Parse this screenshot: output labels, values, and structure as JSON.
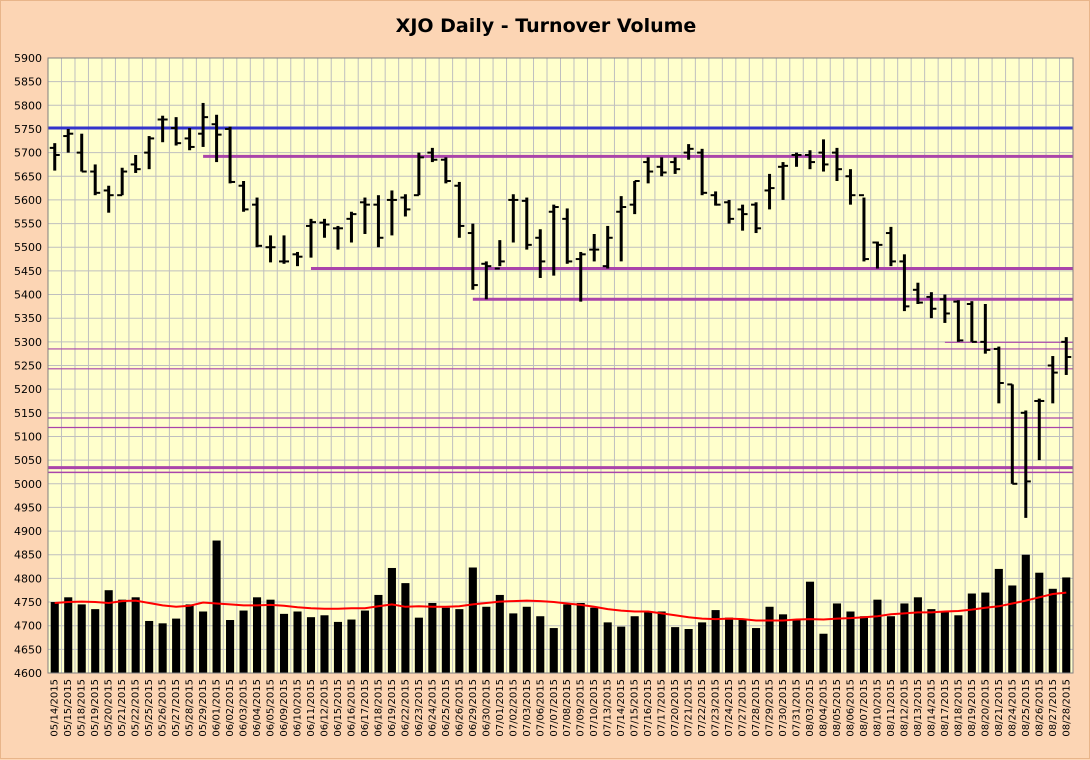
{
  "chart_data": {
    "type": "ohlc_with_volume_bars",
    "title": "XJO Daily - Turnover Volume",
    "ylim": [
      4600,
      5900
    ],
    "y_ticks": [
      5900,
      5850,
      5800,
      5750,
      5700,
      5650,
      5600,
      5550,
      5500,
      5450,
      5400,
      5350,
      5300,
      5250,
      5200,
      5150,
      5100,
      5050,
      5000,
      4950,
      4900,
      4850,
      4800,
      4750,
      4700,
      4650,
      4600
    ],
    "grid": true,
    "background": "#ffffcc",
    "frame_background": "#fcd5b4",
    "x_labels": [
      "05/14/2015",
      "05/15/2015",
      "05/18/2015",
      "05/19/2015",
      "05/20/2015",
      "05/21/2015",
      "05/22/2015",
      "05/25/2015",
      "05/26/2015",
      "05/27/2015",
      "05/28/2015",
      "05/29/2015",
      "06/01/2015",
      "06/02/2015",
      "06/03/2015",
      "06/04/2015",
      "06/05/2015",
      "06/09/2015",
      "06/10/2015",
      "06/11/2015",
      "06/12/2015",
      "06/15/2015",
      "06/16/2015",
      "06/17/2015",
      "06/18/2015",
      "06/19/2015",
      "06/22/2015",
      "06/23/2015",
      "06/24/2015",
      "06/25/2015",
      "06/26/2015",
      "06/29/2015",
      "06/30/2015",
      "07/01/2015",
      "07/02/2015",
      "07/03/2015",
      "07/06/2015",
      "07/07/2015",
      "07/08/2015",
      "07/09/2015",
      "07/10/2015",
      "07/13/2015",
      "07/14/2015",
      "07/15/2015",
      "07/16/2015",
      "07/17/2015",
      "07/20/2015",
      "07/21/2015",
      "07/22/2015",
      "07/23/2015",
      "07/24/2015",
      "07/27/2015",
      "07/28/2015",
      "07/29/2015",
      "07/30/2015",
      "07/31/2015",
      "08/03/2015",
      "08/04/2015",
      "08/05/2015",
      "08/06/2015",
      "08/07/2015",
      "08/10/2015",
      "08/11/2015",
      "08/12/2015",
      "08/13/2015",
      "08/14/2015",
      "08/17/2015",
      "08/18/2015",
      "08/19/2015",
      "08/20/2015",
      "08/21/2015",
      "08/24/2015",
      "08/25/2015",
      "08/26/2015",
      "08/27/2015",
      "08/28/2015"
    ],
    "price_series": {
      "high": [
        5720,
        5750,
        5740,
        5675,
        5630,
        5668,
        5695,
        5735,
        5778,
        5775,
        5752,
        5805,
        5780,
        5755,
        5640,
        5605,
        5525,
        5525,
        5490,
        5560,
        5560,
        5545,
        5575,
        5605,
        5610,
        5620,
        5612,
        5700,
        5710,
        5690,
        5638,
        5550,
        5470,
        5515,
        5612,
        5605,
        5538,
        5590,
        5582,
        5490,
        5528,
        5545,
        5608,
        5640,
        5690,
        5690,
        5690,
        5718,
        5708,
        5618,
        5600,
        5590,
        5595,
        5655,
        5680,
        5700,
        5705,
        5728,
        5710,
        5665,
        5605,
        5512,
        5543,
        5485,
        5425,
        5405,
        5400,
        5388,
        5386,
        5380,
        5290,
        5210,
        5155,
        5180,
        5270,
        5310
      ],
      "low": [
        5662,
        5700,
        5660,
        5610,
        5573,
        5610,
        5657,
        5665,
        5722,
        5715,
        5705,
        5712,
        5680,
        5635,
        5575,
        5500,
        5468,
        5465,
        5460,
        5478,
        5520,
        5495,
        5510,
        5528,
        5500,
        5525,
        5565,
        5610,
        5680,
        5635,
        5520,
        5410,
        5390,
        5460,
        5510,
        5495,
        5435,
        5440,
        5465,
        5385,
        5470,
        5455,
        5470,
        5570,
        5635,
        5650,
        5655,
        5685,
        5610,
        5588,
        5550,
        5535,
        5530,
        5580,
        5600,
        5670,
        5665,
        5660,
        5640,
        5590,
        5470,
        5455,
        5460,
        5365,
        5380,
        5350,
        5340,
        5300,
        5300,
        5275,
        5170,
        5000,
        4928,
        5050,
        5170,
        5230
      ],
      "open": [
        5710,
        5735,
        5700,
        5660,
        5620,
        5610,
        5675,
        5700,
        5770,
        5752,
        5730,
        5740,
        5760,
        5750,
        5630,
        5590,
        5500,
        5470,
        5485,
        5545,
        5552,
        5540,
        5560,
        5595,
        5590,
        5600,
        5605,
        5610,
        5700,
        5685,
        5630,
        5530,
        5465,
        5455,
        5600,
        5598,
        5520,
        5575,
        5560,
        5475,
        5495,
        5460,
        5575,
        5590,
        5680,
        5670,
        5680,
        5700,
        5700,
        5610,
        5595,
        5580,
        5590,
        5620,
        5670,
        5695,
        5695,
        5700,
        5700,
        5650,
        5610,
        5510,
        5530,
        5470,
        5410,
        5395,
        5390,
        5385,
        5380,
        5300,
        5285,
        5210,
        5150,
        5175,
        5250,
        5300
      ],
      "close": [
        5695,
        5740,
        5660,
        5615,
        5610,
        5660,
        5665,
        5730,
        5770,
        5720,
        5712,
        5775,
        5738,
        5638,
        5580,
        5503,
        5500,
        5470,
        5480,
        5553,
        5548,
        5540,
        5570,
        5590,
        5520,
        5600,
        5580,
        5690,
        5685,
        5640,
        5545,
        5420,
        5460,
        5470,
        5600,
        5505,
        5470,
        5585,
        5470,
        5485,
        5495,
        5520,
        5585,
        5640,
        5660,
        5658,
        5665,
        5708,
        5615,
        5590,
        5560,
        5570,
        5540,
        5625,
        5672,
        5695,
        5680,
        5675,
        5665,
        5610,
        5475,
        5505,
        5470,
        5375,
        5383,
        5370,
        5360,
        5303,
        5300,
        5283,
        5213,
        5000,
        5005,
        5175,
        5235,
        5268
      ]
    },
    "volume_series": {
      "values": [
        4750,
        4760,
        4745,
        4735,
        4775,
        4755,
        4760,
        4710,
        4705,
        4715,
        4745,
        4730,
        4880,
        4712,
        4732,
        4760,
        4755,
        4725,
        4730,
        4718,
        4722,
        4708,
        4713,
        4732,
        4765,
        4822,
        4790,
        4717,
        4748,
        4738,
        4735,
        4823,
        4740,
        4765,
        4726,
        4740,
        4720,
        4695,
        4745,
        4748,
        4738,
        4707,
        4698,
        4720,
        4730,
        4730,
        4697,
        4693,
        4707,
        4733,
        4717,
        4715,
        4695,
        4740,
        4724,
        4712,
        4793,
        4683,
        4747,
        4730,
        4720,
        4755,
        4720,
        4747,
        4760,
        4735,
        4730,
        4722,
        4768,
        4770,
        4820,
        4785,
        4850,
        4812,
        4778,
        4802
      ]
    },
    "moving_average": {
      "color": "#ff0000",
      "values": [
        4748,
        4750,
        4751,
        4750,
        4748,
        4752,
        4753,
        4748,
        4743,
        4740,
        4742,
        4749,
        4747,
        4745,
        4743,
        4743,
        4744,
        4742,
        4739,
        4737,
        4736,
        4736,
        4737,
        4737,
        4741,
        4745,
        4740,
        4741,
        4740,
        4740,
        4741,
        4745,
        4748,
        4751,
        4752,
        4753,
        4752,
        4750,
        4747,
        4744,
        4740,
        4735,
        4732,
        4730,
        4730,
        4726,
        4722,
        4718,
        4715,
        4714,
        4715,
        4714,
        4711,
        4711,
        4711,
        4713,
        4714,
        4713,
        4715,
        4716,
        4718,
        4720,
        4724,
        4726,
        4728,
        4728,
        4730,
        4731,
        4734,
        4738,
        4741,
        4747,
        4753,
        4760,
        4767,
        4770
      ]
    },
    "horizontal_lines": [
      {
        "y": 5752,
        "color": "#3333cc",
        "width": 3,
        "from_index": -1
      },
      {
        "y": 5692,
        "color": "#aa44aa",
        "width": 3,
        "from_index": 11
      },
      {
        "y": 5455,
        "color": "#aa44aa",
        "width": 3,
        "from_index": 19
      },
      {
        "y": 5390,
        "color": "#aa44aa",
        "width": 3,
        "from_index": 31
      },
      {
        "y": 5299,
        "color": "#aa44aa",
        "width": 1.2,
        "from_index": 66
      },
      {
        "y": 5285,
        "color": "#aa44aa",
        "width": 1.2,
        "from_index": -1
      },
      {
        "y": 5243,
        "color": "#aa44aa",
        "width": 1.2,
        "from_index": -1
      },
      {
        "y": 5139,
        "color": "#aa44aa",
        "width": 1.2,
        "from_index": -1
      },
      {
        "y": 5119,
        "color": "#aa44aa",
        "width": 1.2,
        "from_index": -1
      },
      {
        "y": 5034,
        "color": "#aa44aa",
        "width": 3,
        "from_index": -1
      },
      {
        "y": 5024,
        "color": "#aa44aa",
        "width": 1.5,
        "from_index": -1
      }
    ],
    "price_color": "#000000",
    "volume_color": "#000000"
  }
}
